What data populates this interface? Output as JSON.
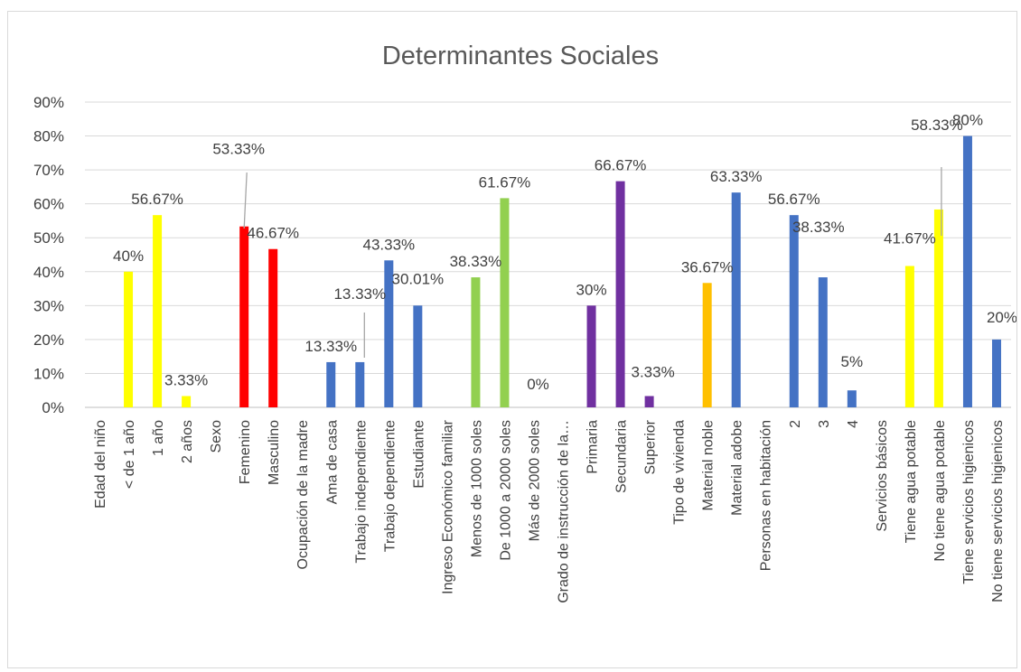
{
  "chart_data": {
    "type": "bar",
    "title": "Determinantes Sociales",
    "xlabel": "",
    "ylabel": "",
    "ylim": [
      0,
      0.9
    ],
    "y_ticks": [
      "0%",
      "10%",
      "20%",
      "30%",
      "40%",
      "50%",
      "60%",
      "70%",
      "80%",
      "90%"
    ],
    "grid": true,
    "legend": "none",
    "categories": [
      "Edad del niño",
      "< de 1 año",
      "1 año",
      "2 años",
      "Sexo",
      "Femenino",
      "Masculino",
      "Ocupación de la madre",
      "Ama de casa",
      "Trabajo independiente",
      "Trabajo dependiente",
      "Estudiante",
      "Ingreso Económico familiar",
      "Menos de 1000 soles",
      "De 1000 a 2000 soles",
      "Más de 2000 soles",
      "Grado de instrucción de la…",
      "Primaria",
      "Secundaria",
      "Superior",
      "Tipo de vivienda",
      "Material noble",
      "Material adobe",
      "Personas en habitación",
      "2",
      "3",
      "4",
      "Servicios básicos",
      "Tiene agua potable",
      "No tiene agua potable",
      "Tiene servicios higienicos",
      "No tiene servicios higienicos"
    ],
    "values": [
      null,
      0.4,
      0.5667,
      0.0333,
      null,
      0.5333,
      0.4667,
      null,
      0.1333,
      0.1333,
      0.4333,
      0.3001,
      null,
      0.3833,
      0.6167,
      0,
      null,
      0.3,
      0.6667,
      0.0333,
      null,
      0.3667,
      0.6333,
      null,
      0.5667,
      0.3833,
      0.05,
      null,
      0.4167,
      0.5833,
      0.8,
      0.2
    ],
    "data_labels": [
      "",
      "40%",
      "56.67%",
      "3.33%",
      "",
      "53.33%",
      "46.67%",
      "",
      "13.33%",
      "13.33%",
      "43.33%",
      "30.01%",
      "",
      "38.33%",
      "61.67%",
      "0%",
      "",
      "30%",
      "66.67%",
      "3.33%",
      "",
      "36.67%",
      "63.33%",
      "",
      "56.67%",
      "38.33%",
      "5%",
      "",
      "41.67%",
      "58.33%",
      "80%",
      "20%"
    ],
    "colors": [
      "",
      "#ffff00",
      "#ffff00",
      "#ffff00",
      "",
      "#ff0000",
      "#ff0000",
      "",
      "#4472c4",
      "#4472c4",
      "#4472c4",
      "#4472c4",
      "",
      "#92d050",
      "#92d050",
      "#92d050",
      "",
      "#7030a0",
      "#7030a0",
      "#7030a0",
      "",
      "#ffc000",
      "#4472c4",
      "",
      "#4472c4",
      "#4472c4",
      "#4472c4",
      "",
      "#ffff00",
      "#ffff00",
      "#4472c4",
      "#4472c4"
    ]
  }
}
